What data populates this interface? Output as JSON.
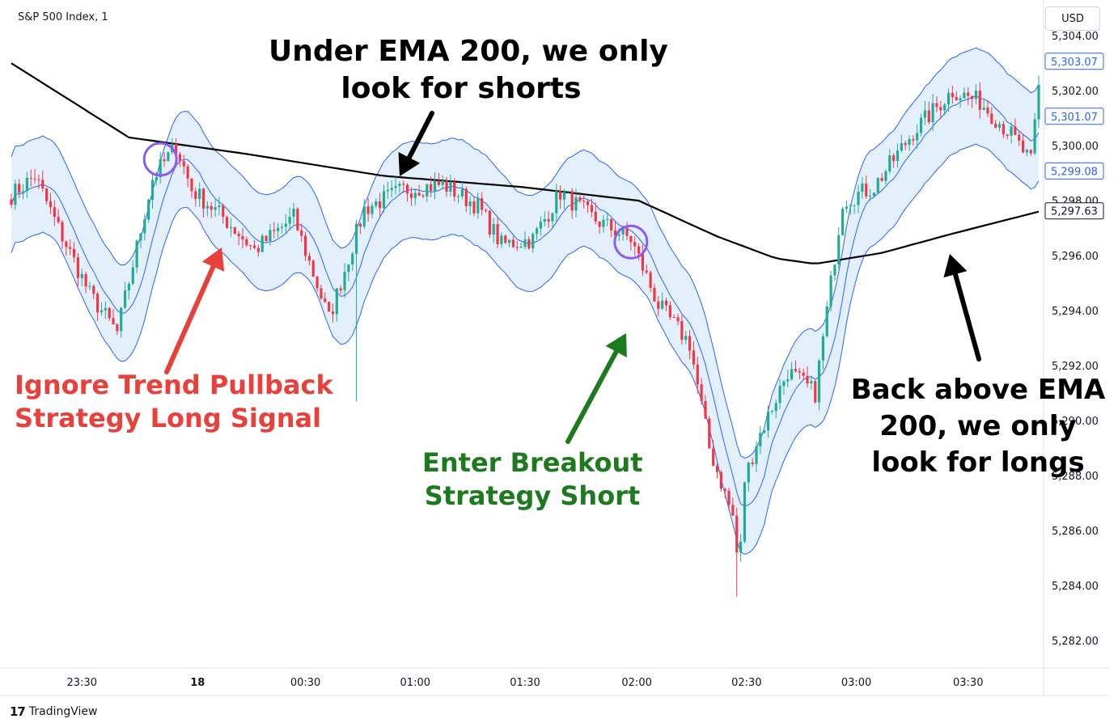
{
  "header": {
    "symbol_title": "S&P 500 Index, 1",
    "currency": "USD"
  },
  "footer": {
    "brand_logo": "17",
    "brand_name": "TradingView"
  },
  "annotations": {
    "ema_shorts_line1": "Under EMA 200, we only",
    "ema_shorts_line2": "look for shorts",
    "ignore_line1": "Ignore Trend Pullback",
    "ignore_line2": "Strategy Long Signal",
    "breakout_line1": "Enter Breakout",
    "breakout_line2": "Strategy Short",
    "longs_line1": "Back above EMA",
    "longs_line2": "200, we only",
    "longs_line3": "look for longs"
  },
  "colors": {
    "up": "#22ab94",
    "down": "#f23645",
    "band_line": "#2962ff",
    "band_fill": "#e3f0fb",
    "ema": "#000000",
    "red_text": "#e8403a",
    "green_text": "#1e7a1e",
    "black_text": "#000000",
    "circle_purple": "#8a5cf5",
    "circle_pink": "#e14fd8"
  },
  "chart_data": {
    "type": "candlestick",
    "title": "S&P 500 Index, 1",
    "ylim": [
      5281.0,
      5305.3
    ],
    "y_ticks": [
      "5,304.00",
      "5,302.00",
      "5,300.00",
      "5,298.00",
      "5,296.00",
      "5,294.00",
      "5,292.00",
      "5,290.00",
      "5,288.00",
      "5,286.00",
      "5,284.00",
      "5,282.00"
    ],
    "x_tick_labels": [
      "23:30",
      "18",
      "00:30",
      "01:00",
      "01:30",
      "02:00",
      "02:30",
      "03:00",
      "03:30"
    ],
    "price_badges": [
      {
        "label": "5,303.07",
        "value": 5303.07,
        "style": "band"
      },
      {
        "label": "5,301.07",
        "value": 5301.07,
        "style": "band"
      },
      {
        "label": "5,299.08",
        "value": 5299.08,
        "style": "band"
      },
      {
        "label": "5,297.63",
        "value": 5297.63,
        "style": "ema"
      }
    ],
    "key_points": [
      {
        "t": 0,
        "p": 5298.2
      },
      {
        "t": 6,
        "p": 5298.9
      },
      {
        "t": 12,
        "p": 5297.0
      },
      {
        "t": 20,
        "p": 5294.6
      },
      {
        "t": 27,
        "p": 5293.2
      },
      {
        "t": 36,
        "p": 5298.8
      },
      {
        "t": 42,
        "p": 5300.0
      },
      {
        "t": 46,
        "p": 5298.4
      },
      {
        "t": 54,
        "p": 5297.4
      },
      {
        "t": 62,
        "p": 5296.2
      },
      {
        "t": 72,
        "p": 5297.4
      },
      {
        "t": 81,
        "p": 5293.7
      },
      {
        "t": 90,
        "p": 5297.7
      },
      {
        "t": 100,
        "p": 5298.4
      },
      {
        "t": 110,
        "p": 5298.6
      },
      {
        "t": 119,
        "p": 5297.8
      },
      {
        "t": 125,
        "p": 5296.4
      },
      {
        "t": 133,
        "p": 5296.6
      },
      {
        "t": 140,
        "p": 5298.3
      },
      {
        "t": 149,
        "p": 5297.3
      },
      {
        "t": 158,
        "p": 5296.6
      },
      {
        "t": 165,
        "p": 5294.2
      },
      {
        "t": 173,
        "p": 5292.8
      },
      {
        "t": 178,
        "p": 5289.0
      },
      {
        "t": 184,
        "p": 5286.5
      },
      {
        "t": 190,
        "p": 5289.2
      },
      {
        "t": 198,
        "p": 5291.8
      },
      {
        "t": 205,
        "p": 5291.0
      },
      {
        "t": 212,
        "p": 5298.0
      },
      {
        "t": 220,
        "p": 5298.5
      },
      {
        "t": 230,
        "p": 5300.5
      },
      {
        "t": 240,
        "p": 5302.0
      },
      {
        "t": 247,
        "p": 5301.6
      },
      {
        "t": 255,
        "p": 5300.4
      },
      {
        "t": 260,
        "p": 5299.4
      },
      {
        "t": 262,
        "p": 5302.1
      }
    ],
    "ema200_points": [
      {
        "t": 0,
        "p": 5303.0
      },
      {
        "t": 30,
        "p": 5300.3
      },
      {
        "t": 60,
        "p": 5299.7
      },
      {
        "t": 95,
        "p": 5298.9
      },
      {
        "t": 130,
        "p": 5298.5
      },
      {
        "t": 160,
        "p": 5298.0
      },
      {
        "t": 180,
        "p": 5296.7
      },
      {
        "t": 195,
        "p": 5295.9
      },
      {
        "t": 205,
        "p": 5295.7
      },
      {
        "t": 222,
        "p": 5296.1
      },
      {
        "t": 240,
        "p": 5296.8
      },
      {
        "t": 262,
        "p": 5297.6
      }
    ],
    "band_width": 1.75,
    "pullback_signal_index": 38,
    "breakout_signal_index": 158
  }
}
